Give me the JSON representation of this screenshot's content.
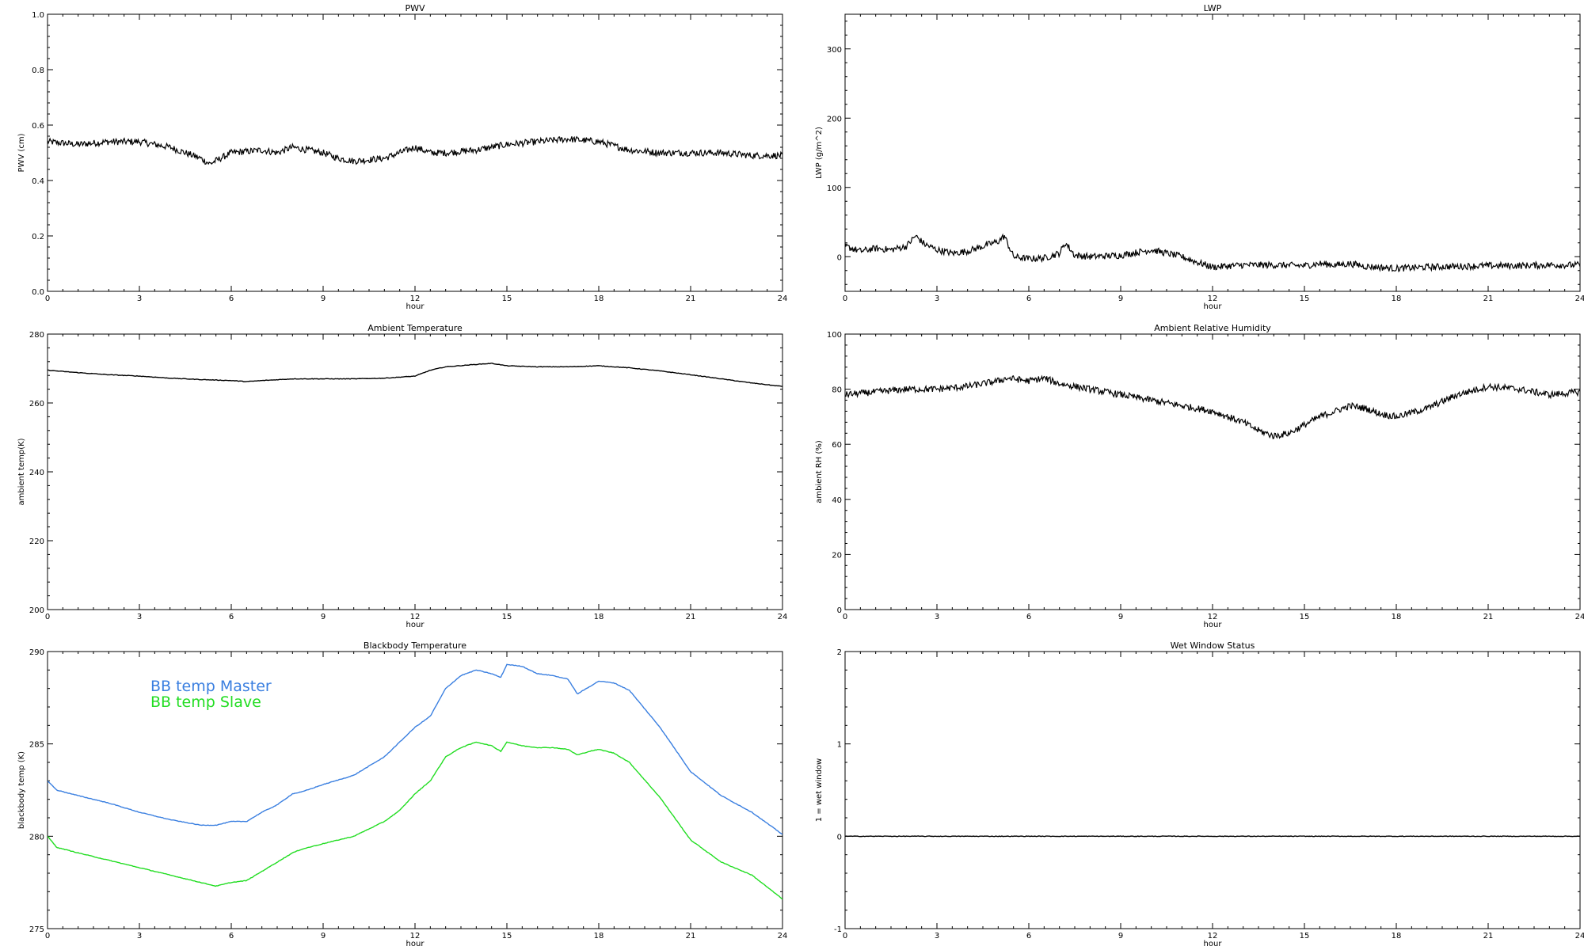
{
  "chart_data": [
    {
      "type": "line",
      "title": "PWV",
      "xlabel": "hour",
      "ylabel": "PWV (cm)",
      "xlim": [
        0,
        24
      ],
      "ylim": [
        0,
        1.0
      ],
      "xticks": [
        0,
        3,
        6,
        9,
        12,
        15,
        18,
        21,
        24
      ],
      "yticks": [
        0.0,
        0.2,
        0.4,
        0.6,
        0.8,
        1.0
      ],
      "ytick_labels": [
        "0.0",
        "0.2",
        "0.4",
        "0.6",
        "0.8",
        "1.0"
      ],
      "style": "noisy",
      "series": [
        {
          "color": "#000000",
          "x": [
            0,
            1,
            2,
            3,
            4,
            5,
            5.3,
            6,
            7,
            7.5,
            8,
            9,
            9.5,
            10,
            11,
            11.5,
            12,
            12.5,
            13,
            14,
            15,
            16,
            17,
            18,
            19,
            20,
            21,
            22,
            23,
            24
          ],
          "y": [
            0.54,
            0.53,
            0.54,
            0.54,
            0.52,
            0.48,
            0.46,
            0.5,
            0.51,
            0.5,
            0.52,
            0.5,
            0.48,
            0.47,
            0.48,
            0.5,
            0.52,
            0.5,
            0.5,
            0.51,
            0.53,
            0.54,
            0.55,
            0.54,
            0.51,
            0.5,
            0.5,
            0.5,
            0.49,
            0.49
          ]
        }
      ]
    },
    {
      "type": "line",
      "title": "LWP",
      "xlabel": "hour",
      "ylabel": "LWP (g/m^2)",
      "xlim": [
        0,
        24
      ],
      "ylim": [
        -50,
        350
      ],
      "xticks": [
        0,
        3,
        6,
        9,
        12,
        15,
        18,
        21,
        24
      ],
      "yticks": [
        0,
        100,
        200,
        300
      ],
      "style": "noisy",
      "series": [
        {
          "color": "#000000",
          "x": [
            0,
            0.5,
            1,
            1.5,
            2,
            2.3,
            2.6,
            3,
            3.5,
            4,
            4.5,
            5,
            5.2,
            5.5,
            6,
            6.5,
            7,
            7.2,
            7.5,
            8,
            9,
            10,
            10.5,
            11,
            11.5,
            12,
            13,
            14,
            15,
            15.5,
            16,
            16.5,
            17,
            18,
            19,
            20,
            21,
            22,
            23,
            24
          ],
          "y": [
            15,
            8,
            12,
            10,
            15,
            30,
            18,
            10,
            5,
            8,
            15,
            22,
            30,
            0,
            -3,
            -2,
            5,
            20,
            2,
            0,
            2,
            10,
            5,
            0,
            -8,
            -15,
            -12,
            -12,
            -13,
            -10,
            -12,
            -10,
            -14,
            -17,
            -15,
            -14,
            -13,
            -13,
            -12,
            -12
          ]
        }
      ]
    },
    {
      "type": "line",
      "title": "Ambient Temperature",
      "xlabel": "hour",
      "ylabel": "ambient temp(K)",
      "xlim": [
        0,
        24
      ],
      "ylim": [
        200,
        280
      ],
      "xticks": [
        0,
        3,
        6,
        9,
        12,
        15,
        18,
        21,
        24
      ],
      "yticks": [
        200,
        220,
        240,
        260,
        280
      ],
      "style": "smooth",
      "series": [
        {
          "color": "#000000",
          "x": [
            0,
            1,
            2,
            3,
            4,
            5,
            6,
            6.5,
            7,
            8,
            9,
            10,
            11,
            12,
            12.5,
            13,
            14,
            14.5,
            15,
            16,
            17,
            18,
            19,
            20,
            21,
            22,
            23,
            24
          ],
          "y": [
            269.5,
            268.8,
            268.2,
            267.8,
            267.2,
            266.8,
            266.5,
            266.2,
            266.5,
            267,
            267,
            267,
            267.2,
            267.8,
            269.5,
            270.5,
            271.2,
            271.5,
            270.8,
            270.5,
            270.5,
            270.8,
            270.2,
            269.3,
            268.2,
            267,
            265.8,
            264.8
          ]
        }
      ]
    },
    {
      "type": "line",
      "title": "Ambient Relative Humidity",
      "xlabel": "hour",
      "ylabel": "ambient RH (%)",
      "xlim": [
        0,
        24
      ],
      "ylim": [
        0,
        100
      ],
      "xticks": [
        0,
        3,
        6,
        9,
        12,
        15,
        18,
        21,
        24
      ],
      "yticks": [
        0,
        20,
        40,
        60,
        80,
        100
      ],
      "style": "noisy",
      "series": [
        {
          "color": "#000000",
          "x": [
            0,
            1,
            2,
            3,
            4,
            5,
            5.3,
            6,
            6.5,
            7,
            8,
            9,
            10,
            11,
            12,
            13,
            13.5,
            14,
            14.5,
            15,
            15.5,
            16,
            16.5,
            17,
            17.5,
            18,
            19,
            20,
            21,
            22,
            23,
            24
          ],
          "y": [
            78,
            79,
            80,
            80,
            81,
            83,
            84,
            83,
            84,
            82,
            80,
            78,
            76,
            74,
            72,
            68,
            65,
            63,
            64,
            67,
            70,
            72,
            74,
            73,
            71,
            70,
            73,
            78,
            81,
            80,
            78,
            79
          ]
        }
      ]
    },
    {
      "type": "line",
      "title": "Blackbody Temperature",
      "xlabel": "hour",
      "ylabel": "blackbody temp (K)",
      "xlim": [
        0,
        24
      ],
      "ylim": [
        275,
        290
      ],
      "xticks": [
        0,
        3,
        6,
        9,
        12,
        15,
        18,
        21,
        24
      ],
      "yticks": [
        275,
        280,
        285,
        290
      ],
      "style": "smooth",
      "legend": [
        "BB temp Master",
        "BB temp Slave"
      ],
      "legend_position": "top-left",
      "series": [
        {
          "name": "BB temp Master",
          "color": "#3a7fe0",
          "x": [
            0,
            0.3,
            1,
            2,
            3,
            4,
            5,
            5.5,
            6,
            6.5,
            7,
            7.5,
            8,
            8.3,
            9,
            10,
            11,
            11.5,
            12,
            12.5,
            13,
            13.5,
            14,
            14.5,
            14.8,
            15,
            15.5,
            16,
            16.5,
            17,
            17.3,
            17.7,
            18,
            18.5,
            19,
            20,
            21,
            22,
            23,
            24
          ],
          "y": [
            283,
            282.5,
            282.2,
            281.8,
            281.3,
            280.9,
            280.6,
            280.6,
            280.8,
            280.8,
            281.3,
            281.7,
            282.3,
            282.4,
            282.8,
            283.3,
            284.3,
            285.1,
            285.9,
            286.5,
            288,
            288.7,
            289,
            288.8,
            288.6,
            289.3,
            289.2,
            288.8,
            288.7,
            288.5,
            287.7,
            288.1,
            288.4,
            288.3,
            287.9,
            285.9,
            283.5,
            282.2,
            281.3,
            280.1
          ]
        },
        {
          "name": "BB temp Slave",
          "color": "#22dd22",
          "x": [
            0,
            0.3,
            1,
            2,
            3,
            4,
            5,
            5.5,
            6,
            6.5,
            7,
            7.5,
            8,
            8.3,
            9,
            10,
            11,
            11.5,
            12,
            12.5,
            13,
            13.5,
            14,
            14.5,
            14.8,
            15,
            15.5,
            16,
            16.5,
            17,
            17.3,
            17.7,
            18,
            18.5,
            19,
            20,
            21,
            22,
            23,
            24
          ],
          "y": [
            280,
            279.4,
            279.1,
            278.7,
            278.3,
            277.9,
            277.5,
            277.3,
            277.5,
            277.6,
            278.1,
            278.6,
            279.1,
            279.3,
            279.6,
            280,
            280.8,
            281.4,
            282.3,
            283,
            284.3,
            284.8,
            285.1,
            284.9,
            284.6,
            285.1,
            284.9,
            284.8,
            284.8,
            284.7,
            284.4,
            284.6,
            284.7,
            284.5,
            284,
            282.1,
            279.8,
            278.6,
            277.9,
            276.6
          ]
        }
      ]
    },
    {
      "type": "line",
      "title": "Wet Window Status",
      "xlabel": "hour",
      "ylabel": "1 = wet window",
      "xlim": [
        0,
        24
      ],
      "ylim": [
        -1,
        2
      ],
      "xticks": [
        0,
        3,
        6,
        9,
        12,
        15,
        18,
        21,
        24
      ],
      "yticks": [
        -1,
        0,
        1,
        2
      ],
      "style": "smooth",
      "series": [
        {
          "color": "#000000",
          "x": [
            0,
            24
          ],
          "y": [
            0,
            0
          ]
        }
      ]
    }
  ]
}
